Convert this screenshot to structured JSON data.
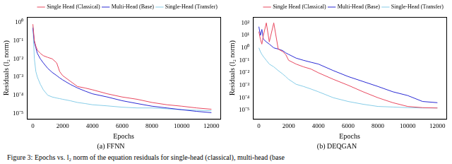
{
  "caption": "Figure 3: Epochs vs. l₂ norm of the equation residuals for single-head (classical), multi-head (base",
  "chart_data": [
    {
      "type": "line",
      "title": "(a) FFNN",
      "x_label": "Epochs",
      "y_label": "Residuals (l₂ norm)",
      "log": "y",
      "grid": false,
      "legend": "upper right",
      "x": [
        0,
        100,
        200,
        300,
        500,
        700,
        1000,
        1300,
        1600,
        1800,
        2000,
        2500,
        3000,
        3500,
        4000,
        5000,
        6000,
        7000,
        8000,
        9000,
        10000,
        11000,
        12000
      ],
      "xlim": [
        -400,
        12600
      ],
      "xticks": [
        0,
        2000,
        4000,
        6000,
        8000,
        10000,
        12000
      ],
      "ylim": [
        5e-06,
        2
      ],
      "yticks": [
        {
          "value": 1e-05,
          "label": "10⁻⁵"
        },
        {
          "value": 0.0001,
          "label": "10⁻⁴"
        },
        {
          "value": 0.001,
          "label": "10⁻³"
        },
        {
          "value": 0.01,
          "label": "10⁻²"
        },
        {
          "value": 0.1,
          "label": "10⁻¹"
        },
        {
          "value": 1,
          "label": "10⁰"
        }
      ],
      "series": [
        {
          "name": "Single Head (Classical)",
          "color": "#e8485f",
          "values": [
            0.8,
            0.1,
            0.05,
            0.03,
            0.02,
            0.015,
            0.012,
            0.01,
            0.006,
            0.002,
            0.0012,
            0.0006,
            0.0003,
            0.00025,
            0.0002,
            0.00012,
            8e-05,
            6e-05,
            4e-05,
            3e-05,
            2.5e-05,
            2e-05,
            1.7e-05
          ]
        },
        {
          "name": "Multi-Head (Base)",
          "color": "#2a2ad4",
          "values": [
            0.5,
            0.08,
            0.04,
            0.02,
            0.01,
            0.006,
            0.003,
            0.0018,
            0.0012,
            0.0009,
            0.0007,
            0.0004,
            0.00025,
            0.00017,
            0.00012,
            8e-05,
            5e-05,
            3.5e-05,
            2.5e-05,
            2e-05,
            1.6e-05,
            1.3e-05,
            1.1e-05
          ]
        },
        {
          "name": "Single-Head (Transfer)",
          "color": "#87cde8",
          "values": [
            0.6,
            0.01,
            0.002,
            0.001,
            0.0004,
            0.0002,
            0.0001,
            8e-05,
            7e-05,
            6.5e-05,
            6e-05,
            5e-05,
            4e-05,
            3.5e-05,
            3e-05,
            2.6e-05,
            2.2e-05,
            2e-05,
            2e-05,
            1.8e-05,
            1.6e-05,
            1.5e-05,
            1.4e-05
          ]
        }
      ]
    },
    {
      "type": "line",
      "title": "(b) DEQGAN",
      "x_label": "Epochs",
      "y_label": "Residuals (l₂ norm)",
      "log": "y",
      "grid": false,
      "legend": "upper right",
      "x": [
        0,
        100,
        200,
        300,
        500,
        700,
        1000,
        1300,
        1600,
        1800,
        2000,
        2500,
        3000,
        3500,
        4000,
        5000,
        6000,
        7000,
        8000,
        9000,
        10000,
        11000,
        12000
      ],
      "xlim": [
        -400,
        12600
      ],
      "xticks": [
        0,
        2000,
        4000,
        6000,
        8000,
        10000,
        12000
      ],
      "ylim": [
        2e-06,
        300
      ],
      "yticks": [
        {
          "value": 1e-05,
          "label": "10⁻⁵"
        },
        {
          "value": 0.0001,
          "label": "10⁻⁴"
        },
        {
          "value": 0.001,
          "label": "10⁻³"
        },
        {
          "value": 0.01,
          "label": "10⁻²"
        },
        {
          "value": 0.1,
          "label": "10⁻¹"
        },
        {
          "value": 1,
          "label": "10⁰"
        },
        {
          "value": 10,
          "label": "10¹"
        },
        {
          "value": 100,
          "label": "10²"
        }
      ],
      "series": [
        {
          "name": "Single Head (Classical)",
          "color": "#e8485f",
          "values": [
            20,
            5,
            2,
            10,
            100,
            3,
            100,
            0.8,
            0.5,
            0.3,
            0.1,
            0.05,
            0.03,
            0.02,
            0.01,
            0.003,
            0.001,
            0.0003,
            0.0001,
            4e-05,
            2e-05,
            1.6e-05,
            1.5e-05
          ]
        },
        {
          "name": "Multi-Head (Base)",
          "color": "#2a2ad4",
          "values": [
            50,
            10,
            30,
            5,
            3,
            2,
            1,
            0.8,
            0.6,
            0.4,
            0.3,
            0.15,
            0.1,
            0.07,
            0.05,
            0.015,
            0.005,
            0.002,
            0.0008,
            0.0003,
            0.00015,
            5e-05,
            4e-05
          ]
        },
        {
          "name": "Single-Head (Transfer)",
          "color": "#87cde8",
          "values": [
            1,
            0.5,
            0.3,
            0.2,
            0.1,
            0.05,
            0.03,
            0.015,
            0.008,
            0.005,
            0.003,
            0.0012,
            0.0008,
            0.0005,
            0.0003,
            0.0001,
            5e-05,
            3e-05,
            2e-05,
            1.8e-05,
            1.6e-05,
            1.5e-05,
            1.5e-05
          ]
        }
      ]
    }
  ]
}
